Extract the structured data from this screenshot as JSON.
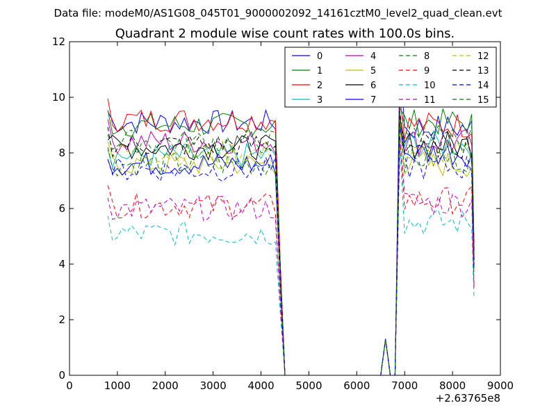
{
  "figure": {
    "suptitle": "Data file: modeM0/AS1G08_045T01_9000002092_14161cztM0_level2_quad_clean.evt"
  },
  "chart_data": {
    "type": "line",
    "title": "Quadrant 2 module wise count rates with 100.0s bins.",
    "xlabel": "",
    "ylabel": "",
    "xlim": [
      0,
      9000
    ],
    "ylim": [
      0,
      12
    ],
    "x_ticks": [
      "0",
      "1000",
      "2000",
      "3000",
      "4000",
      "5000",
      "6000",
      "7000",
      "8000",
      "9000"
    ],
    "y_ticks": [
      "0",
      "2",
      "4",
      "6",
      "8",
      "10",
      "12"
    ],
    "x_offset_label": "+2.63765e8",
    "grid": false,
    "legend_position": "top-right",
    "legend_columns": 4,
    "segments": [
      {
        "x_start": 800,
        "x_end": 4300,
        "step": 100
      },
      {
        "x_start": 6900,
        "x_end": 8400,
        "step": 100
      }
    ],
    "series": [
      {
        "name": "0",
        "color": "#0000ff",
        "dash": "solid",
        "level1": 9.1,
        "level2": 8.9,
        "spike": 11.3
      },
      {
        "name": "1",
        "color": "#007f00",
        "dash": "solid",
        "level1": 9.0,
        "level2": 9.1,
        "spike": 9.6
      },
      {
        "name": "2",
        "color": "#ff0000",
        "dash": "solid",
        "level1": 9.2,
        "level2": 9.0,
        "spike": 10.0
      },
      {
        "name": "3",
        "color": "#00bfbf",
        "dash": "solid",
        "level1": 7.9,
        "level2": 8.3,
        "spike": 9.0
      },
      {
        "name": "4",
        "color": "#bf00bf",
        "dash": "solid",
        "level1": 8.4,
        "level2": 8.4,
        "spike": 9.2
      },
      {
        "name": "5",
        "color": "#bfbf00",
        "dash": "solid",
        "level1": 7.6,
        "level2": 7.6,
        "spike": 9.0
      },
      {
        "name": "6",
        "color": "#000000",
        "dash": "solid",
        "level1": 8.2,
        "level2": 8.3,
        "spike": 9.3
      },
      {
        "name": "7",
        "color": "#0000ff",
        "dash": "solid",
        "level1": 7.6,
        "level2": 8.0,
        "spike": 9.0
      },
      {
        "name": "8",
        "color": "#007f00",
        "dash": "dashed",
        "level1": 7.6,
        "level2": 7.8,
        "spike": 9.4
      },
      {
        "name": "9",
        "color": "#ff0000",
        "dash": "dashed",
        "level1": 6.1,
        "level2": 6.3,
        "spike": 8.6
      },
      {
        "name": "10",
        "color": "#00bfbf",
        "dash": "dashed",
        "level1": 5.1,
        "level2": 5.5,
        "spike": 8.3
      },
      {
        "name": "11",
        "color": "#bf00bf",
        "dash": "dashed",
        "level1": 6.0,
        "level2": 6.2,
        "spike": 8.6
      },
      {
        "name": "12",
        "color": "#bfbf00",
        "dash": "dashed",
        "level1": 8.0,
        "level2": 7.9,
        "spike": 9.2
      },
      {
        "name": "13",
        "color": "#000000",
        "dash": "dashed",
        "level1": 8.3,
        "level2": 8.3,
        "spike": 9.5
      },
      {
        "name": "14",
        "color": "#0000ff",
        "dash": "dashed",
        "level1": 7.4,
        "level2": 7.5,
        "spike": 9.0
      },
      {
        "name": "15",
        "color": "#007f00",
        "dash": "dashed",
        "level1": 8.4,
        "level2": 8.6,
        "spike": 9.8
      }
    ],
    "transient_bump": {
      "x": 6600,
      "y": 1.3
    },
    "gap": {
      "x_start": 4500,
      "x_end": 6800,
      "y": 0
    }
  }
}
